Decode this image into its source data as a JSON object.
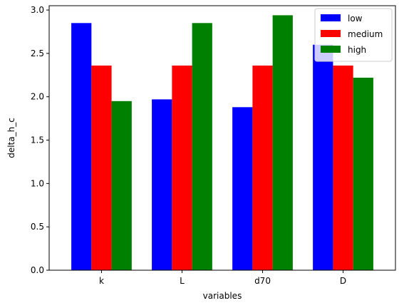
{
  "chart_data": {
    "type": "bar",
    "xlabel": "variables",
    "ylabel": "delta_h_c",
    "categories": [
      "k",
      "L",
      "d70",
      "D"
    ],
    "ylim": [
      0,
      3.05
    ],
    "yticks": [
      "0.0",
      "0.5",
      "1.0",
      "1.5",
      "2.0",
      "2.5",
      "3.0"
    ],
    "grid": false,
    "legend_position": "top-right",
    "series": [
      {
        "name": "low",
        "color": "#0000ff",
        "values": [
          2.85,
          1.97,
          1.88,
          2.6
        ]
      },
      {
        "name": "medium",
        "color": "#ff0000",
        "values": [
          2.36,
          2.36,
          2.36,
          2.36
        ]
      },
      {
        "name": "high",
        "color": "#008000",
        "values": [
          1.95,
          2.85,
          2.94,
          2.22
        ]
      }
    ]
  }
}
